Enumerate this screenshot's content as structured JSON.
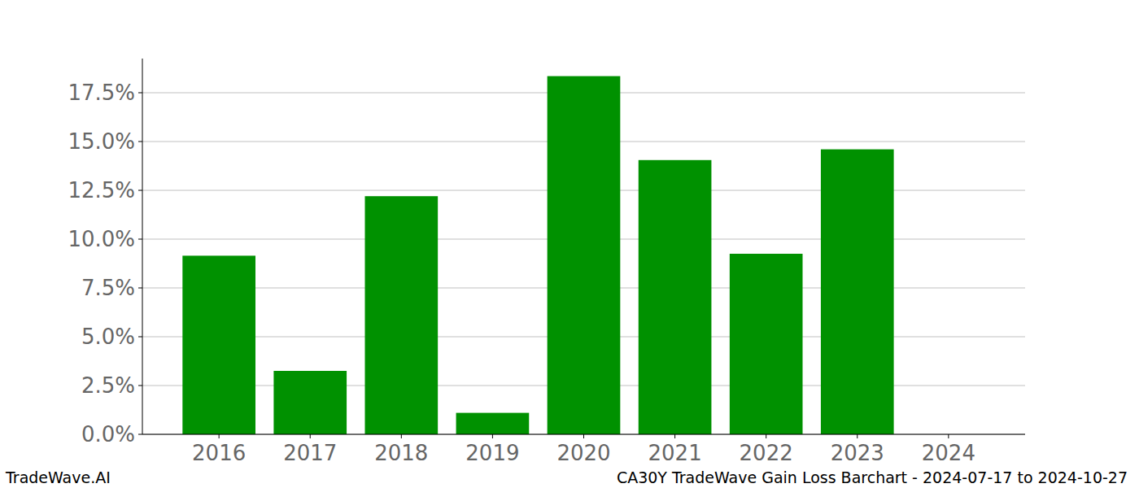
{
  "chart_data": {
    "type": "bar",
    "title": "CA30Y TradeWave Gain Loss Barchart - 2024-07-17 to 2024-10-27",
    "annotations": [
      "TradeWave.AI"
    ],
    "categories": [
      "2016",
      "2017",
      "2018",
      "2019",
      "2020",
      "2021",
      "2022",
      "2023",
      "2024"
    ],
    "values": [
      9.15,
      3.25,
      12.2,
      1.1,
      18.35,
      14.05,
      9.25,
      14.6,
      0
    ],
    "color": "#009100",
    "ylim": [
      0,
      19.25
    ],
    "yticks": [
      {
        "value": 0,
        "label": "0.0%"
      },
      {
        "value": 2.5,
        "label": "2.5%"
      },
      {
        "value": 5,
        "label": "5.0%"
      },
      {
        "value": 7.5,
        "label": "7.5%"
      },
      {
        "value": 10,
        "label": "10.0%"
      },
      {
        "value": 12.5,
        "label": "12.5%"
      },
      {
        "value": 15,
        "label": "15.0%"
      },
      {
        "value": 17.5,
        "label": "17.5%"
      }
    ],
    "grid": true
  }
}
